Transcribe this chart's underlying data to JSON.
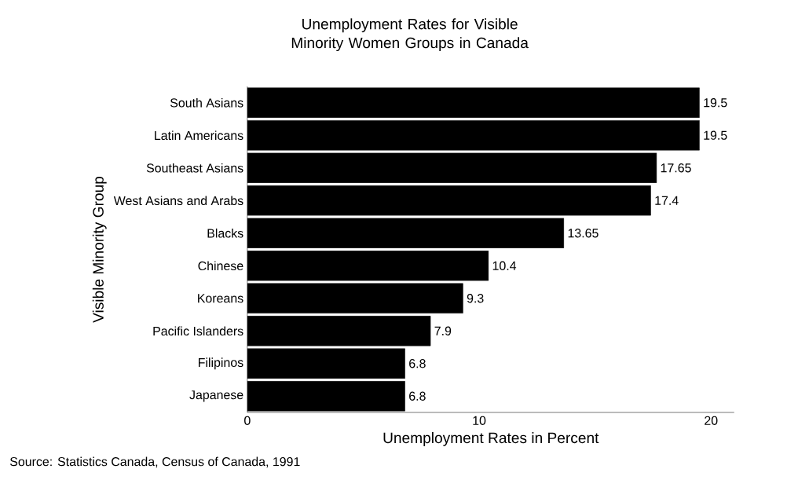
{
  "chart_data": {
    "type": "bar",
    "orientation": "horizontal",
    "title": "Unemployment Rates for Visible Minority Women Groups in Canada",
    "xlabel": "Unemployment Rates in Percent",
    "ylabel": "Visible Minority Group",
    "categories": [
      "South Asians",
      "Latin Americans",
      "Southeast Asians",
      "West Asians and Arabs",
      "Blacks",
      "Chinese",
      "Koreans",
      "Pacific Islanders",
      "Filipinos",
      "Japanese"
    ],
    "values": [
      19.5,
      19.5,
      17.65,
      17.4,
      13.65,
      10.4,
      9.3,
      7.9,
      6.8,
      6.8
    ],
    "color": "#000000",
    "data_labels": true,
    "xlim": [
      0,
      21
    ],
    "xticks": [
      0,
      10,
      20
    ],
    "annotations": [
      "Source: Statistics Canada, Census of Canada, 1991"
    ]
  }
}
